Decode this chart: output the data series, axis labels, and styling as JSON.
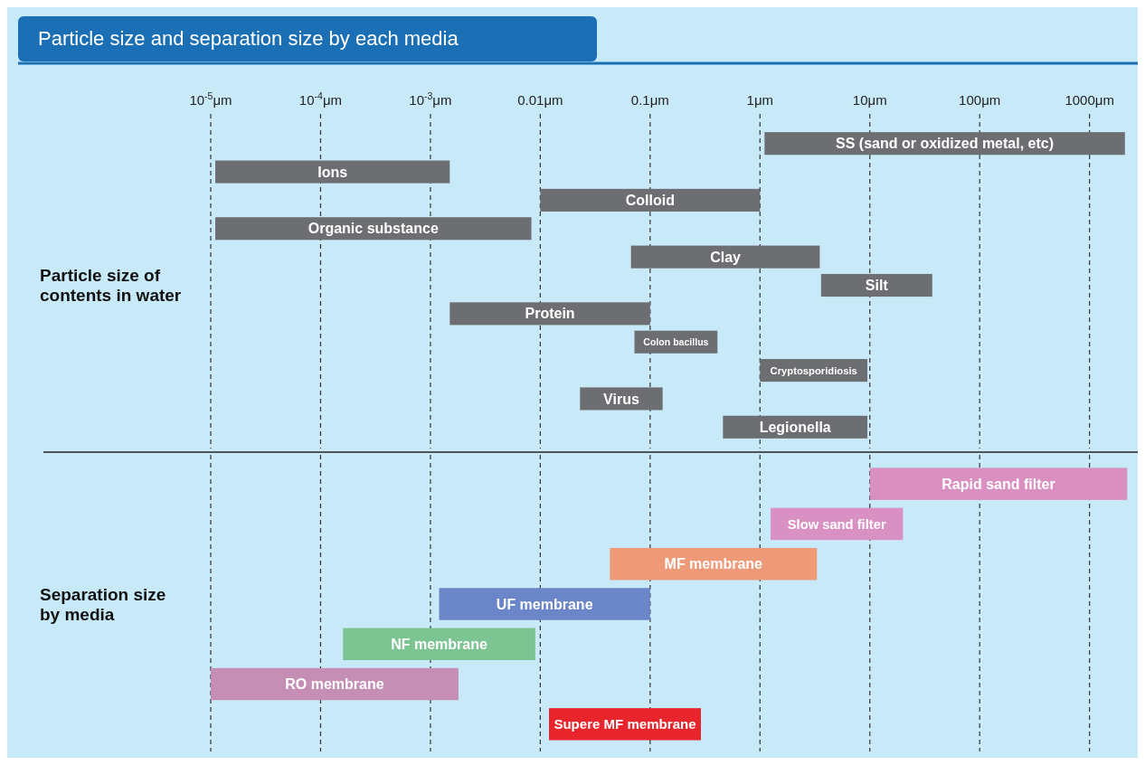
{
  "chart_data": [
    {
      "type": "bar",
      "title": "Particle size and separation size by each media",
      "ylabel": "Particle size of contents in water",
      "orientation": "horizontal",
      "log": "x",
      "grid": "x",
      "categories": [
        "SS (sand or oxidized metal, etc)",
        "Ions",
        "Colloid",
        "Organic substance",
        "Clay",
        "Silt",
        "Protein",
        "Colon bacillus",
        "Cryptosporidiosis",
        "Virus",
        "Legionella"
      ],
      "base": [
        1.1,
        1.1e-05,
        0.01,
        1.1e-05,
        0.067,
        3.6,
        0.0015,
        0.072,
        1,
        0.023,
        0.46
      ],
      "values": [
        2098.9,
        0.001489,
        0.99,
        0.008289,
        3.433,
        33.4,
        0.0985,
        0.338,
        8.5,
        0.107,
        9.04
      ],
      "colors": [
        "#6d6e71",
        "#6d6e71",
        "#6d6e71",
        "#6d6e71",
        "#6d6e71",
        "#6d6e71",
        "#6d6e71",
        "#6d6e71",
        "#6d6e71",
        "#6d6e71",
        "#6d6e71"
      ],
      "xlim": [
        1e-05,
        2500
      ],
      "xticks": [
        {
          "value": 1e-05,
          "label": "10$^{-5}$μm"
        },
        {
          "value": 0.0001,
          "label": "10$^{-4}$μm"
        },
        {
          "value": 0.001,
          "label": "10$^{-3}$μm"
        },
        {
          "value": 0.01,
          "label": "0.01μm"
        },
        {
          "value": 0.1,
          "label": "0.1μm"
        },
        {
          "value": 1,
          "label": "1μm"
        },
        {
          "value": 10,
          "label": "10μm"
        },
        {
          "value": 100,
          "label": "100μm"
        },
        {
          "value": 1000,
          "label": "1000μm"
        }
      ]
    },
    {
      "type": "bar",
      "ylabel": "Separation size by media",
      "orientation": "horizontal",
      "log": "x",
      "grid": "x",
      "tick_labels": "y",
      "categories": [
        "Rapid sand filter",
        "Slow sand filter",
        "MF membrane",
        "UF membrane",
        "NF membrane",
        "RO membrane",
        "Supere MF membrane"
      ],
      "base": [
        10,
        1.25,
        0.043,
        0.0012,
        0.00016,
        1e-05,
        0.012
      ],
      "values": [
        2190,
        18.75,
        3.257,
        0.0988,
        0.00884,
        0.00179,
        0.278
      ],
      "colors": [
        "#d98fbf",
        "#d991c3",
        "#ee9a78",
        "#6a86c8",
        "#7cc491",
        "#c58fb5",
        "#e8242c"
      ],
      "xlim": [
        1e-05,
        2500
      ],
      "xticks": [
        {
          "value": 1e-05,
          "label": null
        },
        {
          "value": 0.0001,
          "label": null
        },
        {
          "value": 0.001,
          "label": null
        },
        {
          "value": 0.01,
          "label": null
        },
        {
          "value": 0.1,
          "label": null
        },
        {
          "value": 1,
          "label": null
        },
        {
          "value": 10,
          "label": null
        },
        {
          "value": 100,
          "label": null
        },
        {
          "value": 1000,
          "label": null
        }
      ]
    }
  ]
}
